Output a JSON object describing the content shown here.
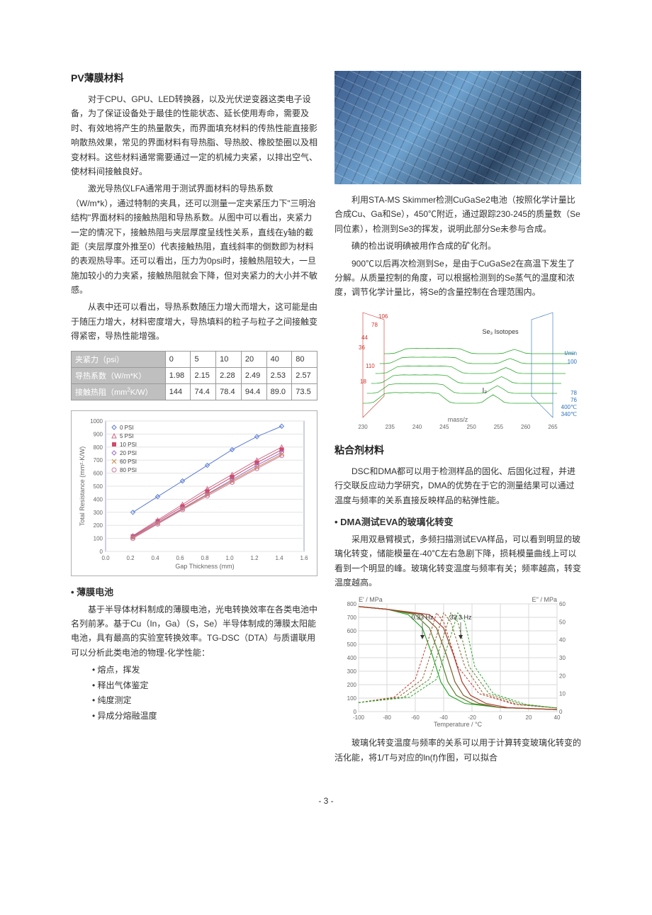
{
  "page_number": "- 3 -",
  "left": {
    "title": "PV薄膜材料",
    "p1": "对于CPU、GPU、LED转换器，以及光伏逆变器这类电子设备，为了保证设备处于最佳的性能状态、延长使用寿命，需要及时、有效地将产生的热量散失，而界面填充材料的传热性能直接影响散热效果，常见的界面材料有导热脂、导热胶、橡胶垫圈以及相变材料。这些材料通常需要通过一定的机械力夹紧，以排出空气、使材料间接触良好。",
    "p2": "激光导热仪LFA通常用于测试界面材料的导热系数（W/m*k），通过特制的夹具，还可以测量一定夹紧压力下\"三明治结构\"界面材料的接触热阻和导热系数。从图中可以看出，夹紧力一定的情况下，接触热阻与夹层厚度呈线性关系，直线在y轴的截距（夹层厚度外推至0）代表接触热阻，直线斜率的倒数即为材料的表观热导率。还可以看出，压力为0psi时，接触热阻较大，一旦施加较小的力夹紧，接触热阻就会下降，但对夹紧力的大小并不敏感。",
    "p3": "从表中还可以看出，导热系数随压力增大而增大，这可能是由于随压力增大，材料密度增大，导热填料的粒子与粒子之间接触变得紧密，导热性能增强。",
    "table": {
      "rows_label": [
        "夹紧力（psi）",
        "导热系数（W/m*K）",
        "接触热阻（mm²K/W）"
      ],
      "cols": [
        "0",
        "5",
        "10",
        "20",
        "40",
        "80"
      ],
      "values": [
        [
          "1.98",
          "2.15",
          "2.28",
          "2.49",
          "2.53",
          "2.57"
        ],
        [
          "144",
          "74.4",
          "78.4",
          "94.4",
          "89.0",
          "73.5"
        ]
      ]
    },
    "chart1": {
      "type": "scatter-line",
      "xlabel": "Gap Thickness (mm)",
      "ylabel": "Total Resistance (mm²·K/W)",
      "xlim": [
        0,
        1.6
      ],
      "xtick_step": 0.2,
      "ylim": [
        0,
        1000
      ],
      "ytick_step": 100,
      "border_color": "#9aa0bf",
      "grid_color": "#e3e3e3",
      "legend": [
        {
          "label": "0 PSI",
          "marker": "diamond",
          "color": "#5b7bd5"
        },
        {
          "label": "5 PSI",
          "marker": "triangle",
          "color": "#d06a8a"
        },
        {
          "label": "10 PSI",
          "marker": "square",
          "color": "#d04a6a"
        },
        {
          "label": "20 PSI",
          "marker": "diamond",
          "color": "#9a6ad0"
        },
        {
          "label": "60 PSI",
          "marker": "x",
          "color": "#cc8844"
        },
        {
          "label": "80 PSI",
          "marker": "circle",
          "color": "#d07aa0"
        }
      ],
      "series": [
        {
          "color": "#5b7bd5",
          "marker": "diamond",
          "points": [
            [
              0.22,
              300
            ],
            [
              0.42,
              420
            ],
            [
              0.62,
              540
            ],
            [
              0.82,
              660
            ],
            [
              1.02,
              780
            ],
            [
              1.22,
              880
            ],
            [
              1.42,
              960
            ]
          ]
        },
        {
          "color": "#d06a8a",
          "marker": "triangle",
          "points": [
            [
              0.22,
              120
            ],
            [
              0.42,
              240
            ],
            [
              0.62,
              360
            ],
            [
              0.82,
              480
            ],
            [
              1.02,
              590
            ],
            [
              1.22,
              700
            ],
            [
              1.42,
              800
            ]
          ]
        },
        {
          "color": "#d04a6a",
          "marker": "square",
          "points": [
            [
              0.22,
              115
            ],
            [
              0.42,
              230
            ],
            [
              0.62,
              345
            ],
            [
              0.82,
              460
            ],
            [
              1.02,
              570
            ],
            [
              1.22,
              680
            ],
            [
              1.42,
              780
            ]
          ]
        },
        {
          "color": "#9a6ad0",
          "marker": "diamond",
          "points": [
            [
              0.22,
              110
            ],
            [
              0.42,
              220
            ],
            [
              0.62,
              330
            ],
            [
              0.82,
              440
            ],
            [
              1.02,
              550
            ],
            [
              1.22,
              660
            ],
            [
              1.42,
              760
            ]
          ]
        },
        {
          "color": "#cc8844",
          "marker": "x",
          "points": [
            [
              0.22,
              105
            ],
            [
              0.42,
              215
            ],
            [
              0.62,
              325
            ],
            [
              0.82,
              435
            ],
            [
              1.02,
              540
            ],
            [
              1.22,
              645
            ],
            [
              1.42,
              745
            ]
          ]
        },
        {
          "color": "#d07aa0",
          "marker": "circle",
          "points": [
            [
              0.22,
              100
            ],
            [
              0.42,
              210
            ],
            [
              0.62,
              320
            ],
            [
              0.82,
              425
            ],
            [
              1.02,
              530
            ],
            [
              1.22,
              635
            ],
            [
              1.42,
              735
            ]
          ]
        }
      ]
    },
    "sub_title": "薄膜电池",
    "p4": "基于半导体材料制成的薄膜电池，光电转换效率在各类电池中名列前茅。基于Cu（In，Ga）（S，Se）半导体制成的薄膜太阳能电池，具有最高的实验室转换效率。TG-DSC（DTA）与质谱联用可以分析此类电池的物理-化学性能：",
    "list": [
      "熔点，挥发",
      "释出气体鉴定",
      "纯度测定",
      "异成分熔融温度"
    ]
  },
  "right": {
    "p1": "利用STA-MS Skimmer检测CuGaSe2电池（按照化学计量比合成Cu、Ga和Se），450℃附近，通过跟踪230-245的质量数（Se同位素），检测到Se3的挥发，说明此部分Se未参与合成。",
    "p2": "碘的检出说明碘被用作合成的矿化剂。",
    "p3": "900℃以后再次检测到Se，是由于CuGaSe2在高温下发生了分解。从质量控制的角度，可以根据检测到的Se蒸气的温度和浓度，调节化学计量比，将Se的含量控制在合理范围内。",
    "chart2": {
      "type": "3d-mass-spectrum",
      "xlabel": "mass/z",
      "annotations": [
        "Se₃ Isotopes",
        "I₂",
        "78",
        "106",
        "44",
        "36",
        "110",
        "18"
      ],
      "temp_labels": [
        "78",
        "76",
        "400℃",
        "340℃"
      ],
      "time_labels": [
        "100",
        "t/min"
      ],
      "xlim": [
        230,
        265
      ],
      "xtick_step": 5,
      "peak_color": "#2aa82a",
      "axis_colors": {
        "left": "#d0342c",
        "right": "#2b6fb8"
      },
      "background": "#ffffff"
    },
    "title2": "粘合剂材料",
    "p4": "DSC和DMA都可以用于检测样品的固化、后固化过程，并进行交联反应动力学研究，DMA的优势在于它的测量结果可以通过温度与频率的关系直接反映样品的粘弹性能。",
    "sub_title2": "DMA测试EVA的玻璃化转变",
    "p5": "采用双悬臂模式，多频扫描测试EVA样品，可以看到明显的玻璃化转变，储能模量在-40℃左右急剧下降，损耗模量曲线上可以看到一个明显的峰。玻璃化转变温度与频率有关；频率越高，转变温度越高。",
    "chart3": {
      "type": "line",
      "xlabel": "Temperature / °C",
      "ylabel_left": "E' / MPa",
      "ylabel_right": "E'' / MPa",
      "xlim": [
        -100,
        40
      ],
      "xtick_step": 20,
      "ylim_left": [
        0,
        800
      ],
      "ytick_step_left": 100,
      "ylim_right": [
        0,
        60
      ],
      "ytick_step_right": 10,
      "annotations": [
        {
          "text": "0.33 Hz",
          "x": -55,
          "color": "#2aa82a"
        },
        {
          "text": "33.3 Hz",
          "x": -28,
          "color": "#c03a2c"
        }
      ],
      "storage_color_range": [
        "#2aa82a",
        "#a83a2a"
      ],
      "loss_color_range": [
        "#c03a2c",
        "#2aa82a"
      ],
      "grid_color": "#d9d9d9",
      "background": "#ffffff",
      "storage_curves": [
        [
          [
            -100,
            780
          ],
          [
            -80,
            760
          ],
          [
            -65,
            720
          ],
          [
            -55,
            620
          ],
          [
            -48,
            420
          ],
          [
            -42,
            220
          ],
          [
            -36,
            120
          ],
          [
            -25,
            60
          ],
          [
            0,
            30
          ],
          [
            40,
            15
          ]
        ],
        [
          [
            -100,
            780
          ],
          [
            -80,
            760
          ],
          [
            -60,
            720
          ],
          [
            -50,
            620
          ],
          [
            -43,
            420
          ],
          [
            -37,
            220
          ],
          [
            -31,
            120
          ],
          [
            -20,
            60
          ],
          [
            0,
            30
          ],
          [
            40,
            15
          ]
        ],
        [
          [
            -100,
            780
          ],
          [
            -80,
            760
          ],
          [
            -55,
            720
          ],
          [
            -45,
            620
          ],
          [
            -38,
            420
          ],
          [
            -32,
            220
          ],
          [
            -26,
            120
          ],
          [
            -15,
            60
          ],
          [
            0,
            30
          ],
          [
            40,
            15
          ]
        ],
        [
          [
            -100,
            780
          ],
          [
            -80,
            760
          ],
          [
            -50,
            720
          ],
          [
            -40,
            620
          ],
          [
            -33,
            420
          ],
          [
            -27,
            220
          ],
          [
            -21,
            120
          ],
          [
            -10,
            60
          ],
          [
            5,
            30
          ],
          [
            40,
            15
          ]
        ]
      ],
      "loss_curves": [
        [
          [
            -100,
            5
          ],
          [
            -75,
            8
          ],
          [
            -60,
            18
          ],
          [
            -50,
            42
          ],
          [
            -45,
            55
          ],
          [
            -40,
            50
          ],
          [
            -30,
            25
          ],
          [
            -15,
            10
          ],
          [
            10,
            4
          ],
          [
            40,
            2
          ]
        ],
        [
          [
            -100,
            5
          ],
          [
            -72,
            8
          ],
          [
            -55,
            18
          ],
          [
            -45,
            42
          ],
          [
            -40,
            55
          ],
          [
            -35,
            50
          ],
          [
            -25,
            25
          ],
          [
            -12,
            10
          ],
          [
            12,
            4
          ],
          [
            40,
            2
          ]
        ],
        [
          [
            -100,
            5
          ],
          [
            -68,
            8
          ],
          [
            -50,
            18
          ],
          [
            -40,
            42
          ],
          [
            -35,
            55
          ],
          [
            -30,
            50
          ],
          [
            -22,
            25
          ],
          [
            -8,
            10
          ],
          [
            15,
            4
          ],
          [
            40,
            2
          ]
        ],
        [
          [
            -100,
            5
          ],
          [
            -64,
            8
          ],
          [
            -45,
            18
          ],
          [
            -35,
            42
          ],
          [
            -30,
            55
          ],
          [
            -25,
            50
          ],
          [
            -18,
            25
          ],
          [
            -5,
            10
          ],
          [
            18,
            4
          ],
          [
            40,
            2
          ]
        ]
      ]
    },
    "p6": "玻璃化转变温度与频率的关系可以用于计算转变玻璃化转变的活化能，将1/T与对应的ln(f)作图，可以拟合"
  }
}
